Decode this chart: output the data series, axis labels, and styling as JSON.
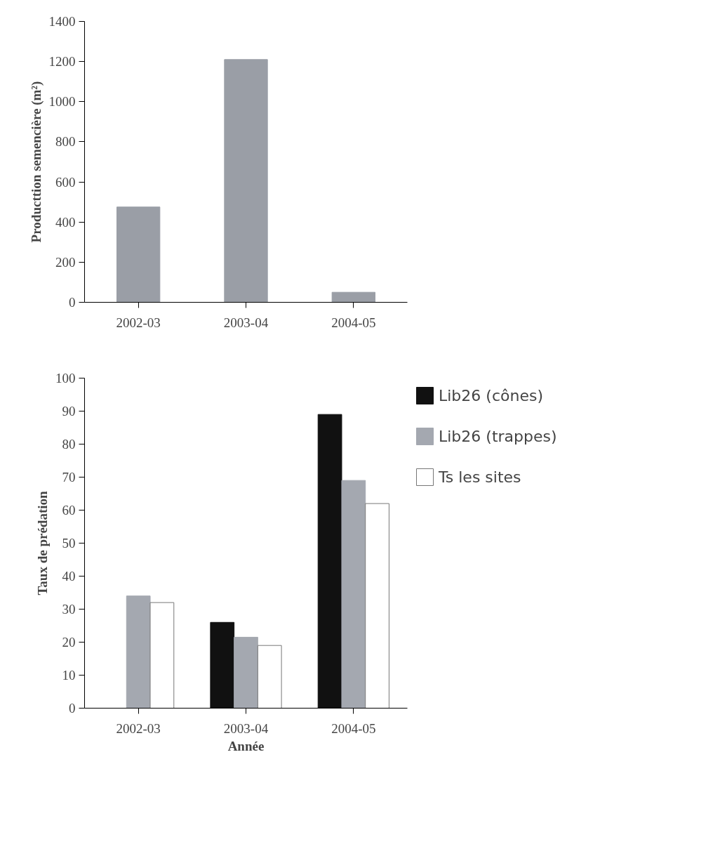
{
  "chart_data": [
    {
      "type": "bar",
      "ylabel": "Producttion semencière (m²)",
      "categories": [
        "2002-03",
        "2003-04",
        "2004-05"
      ],
      "series": [
        {
          "color": "#9a9ea6",
          "values": [
            475,
            1210,
            50
          ]
        }
      ],
      "ylim": [
        0,
        1400
      ],
      "yticks": [
        0,
        200,
        400,
        600,
        800,
        1000,
        1200,
        1400
      ],
      "grid": false,
      "legend": false
    },
    {
      "type": "bar",
      "xlabel": "Année",
      "ylabel": "Taux de prédation",
      "categories": [
        "2002-03",
        "2003-04",
        "2004-05"
      ],
      "series": [
        {
          "name": "Lib26 (cônes)",
          "color": "#111111",
          "values": [
            0,
            26,
            89
          ]
        },
        {
          "name": "Lib26 (trappes)",
          "color": "#a4a8b0",
          "values": [
            34,
            21.5,
            69
          ]
        },
        {
          "name": "Ts les sites",
          "color": "#ffffff",
          "values": [
            32,
            19,
            62
          ]
        }
      ],
      "ylim": [
        0,
        100
      ],
      "yticks": [
        0,
        10,
        20,
        30,
        40,
        50,
        60,
        70,
        80,
        90,
        100
      ],
      "grid": false,
      "legend": "right"
    }
  ]
}
